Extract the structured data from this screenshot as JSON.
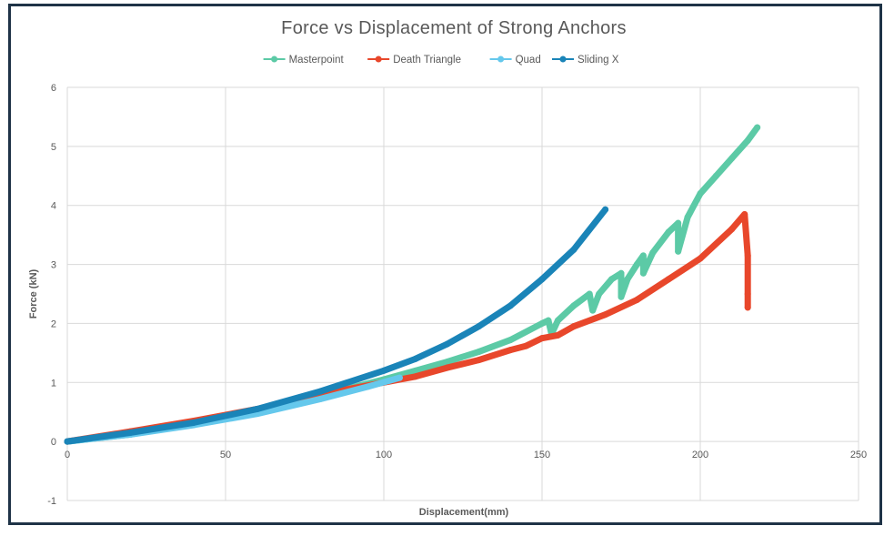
{
  "chart_data": {
    "type": "scatter",
    "title": "Force vs Displacement of Strong Anchors",
    "xlabel": "Displacement(mm)",
    "ylabel": "Force (kN)",
    "xlim": [
      0,
      250
    ],
    "ylim": [
      -1,
      6
    ],
    "xticks": [
      0,
      50,
      100,
      150,
      200,
      250
    ],
    "yticks": [
      -1,
      0,
      1,
      2,
      3,
      4,
      5,
      6
    ],
    "grid": true,
    "legend": "top-center",
    "series": [
      {
        "name": "Masterpoint",
        "color": "#5ccaa6",
        "points": [
          [
            0,
            0
          ],
          [
            20,
            0.12
          ],
          [
            40,
            0.3
          ],
          [
            60,
            0.5
          ],
          [
            80,
            0.78
          ],
          [
            100,
            1.05
          ],
          [
            110,
            1.2
          ],
          [
            120,
            1.35
          ],
          [
            130,
            1.52
          ],
          [
            140,
            1.72
          ],
          [
            150,
            2.0
          ],
          [
            152,
            2.05
          ],
          [
            153,
            1.82
          ],
          [
            155,
            2.05
          ],
          [
            160,
            2.3
          ],
          [
            165,
            2.5
          ],
          [
            166,
            2.22
          ],
          [
            168,
            2.5
          ],
          [
            172,
            2.75
          ],
          [
            175,
            2.85
          ],
          [
            175,
            2.45
          ],
          [
            177,
            2.75
          ],
          [
            180,
            3.0
          ],
          [
            182,
            3.15
          ],
          [
            182,
            2.85
          ],
          [
            185,
            3.2
          ],
          [
            190,
            3.55
          ],
          [
            193,
            3.7
          ],
          [
            193,
            3.22
          ],
          [
            196,
            3.8
          ],
          [
            200,
            4.2
          ],
          [
            205,
            4.5
          ],
          [
            210,
            4.8
          ],
          [
            215,
            5.1
          ],
          [
            218,
            5.32
          ]
        ]
      },
      {
        "name": "Death Triangle",
        "color": "#e8472b",
        "points": [
          [
            0,
            0
          ],
          [
            20,
            0.17
          ],
          [
            40,
            0.35
          ],
          [
            60,
            0.55
          ],
          [
            80,
            0.8
          ],
          [
            100,
            1.0
          ],
          [
            110,
            1.1
          ],
          [
            120,
            1.25
          ],
          [
            130,
            1.38
          ],
          [
            140,
            1.55
          ],
          [
            145,
            1.62
          ],
          [
            150,
            1.75
          ],
          [
            155,
            1.8
          ],
          [
            160,
            1.95
          ],
          [
            170,
            2.15
          ],
          [
            180,
            2.4
          ],
          [
            190,
            2.75
          ],
          [
            200,
            3.1
          ],
          [
            210,
            3.6
          ],
          [
            214,
            3.85
          ],
          [
            215,
            3.15
          ],
          [
            215,
            2.5
          ],
          [
            215,
            2.27
          ]
        ]
      },
      {
        "name": "Quad",
        "color": "#65c8ec",
        "points": [
          [
            0,
            0
          ],
          [
            20,
            0.12
          ],
          [
            40,
            0.28
          ],
          [
            60,
            0.47
          ],
          [
            80,
            0.72
          ],
          [
            95,
            0.93
          ],
          [
            105,
            1.08
          ]
        ]
      },
      {
        "name": "Sliding X",
        "color": "#1a84b8",
        "points": [
          [
            0,
            0
          ],
          [
            20,
            0.15
          ],
          [
            40,
            0.32
          ],
          [
            60,
            0.55
          ],
          [
            80,
            0.85
          ],
          [
            100,
            1.2
          ],
          [
            110,
            1.4
          ],
          [
            120,
            1.65
          ],
          [
            130,
            1.95
          ],
          [
            140,
            2.3
          ],
          [
            150,
            2.75
          ],
          [
            160,
            3.25
          ],
          [
            170,
            3.93
          ]
        ]
      }
    ]
  }
}
